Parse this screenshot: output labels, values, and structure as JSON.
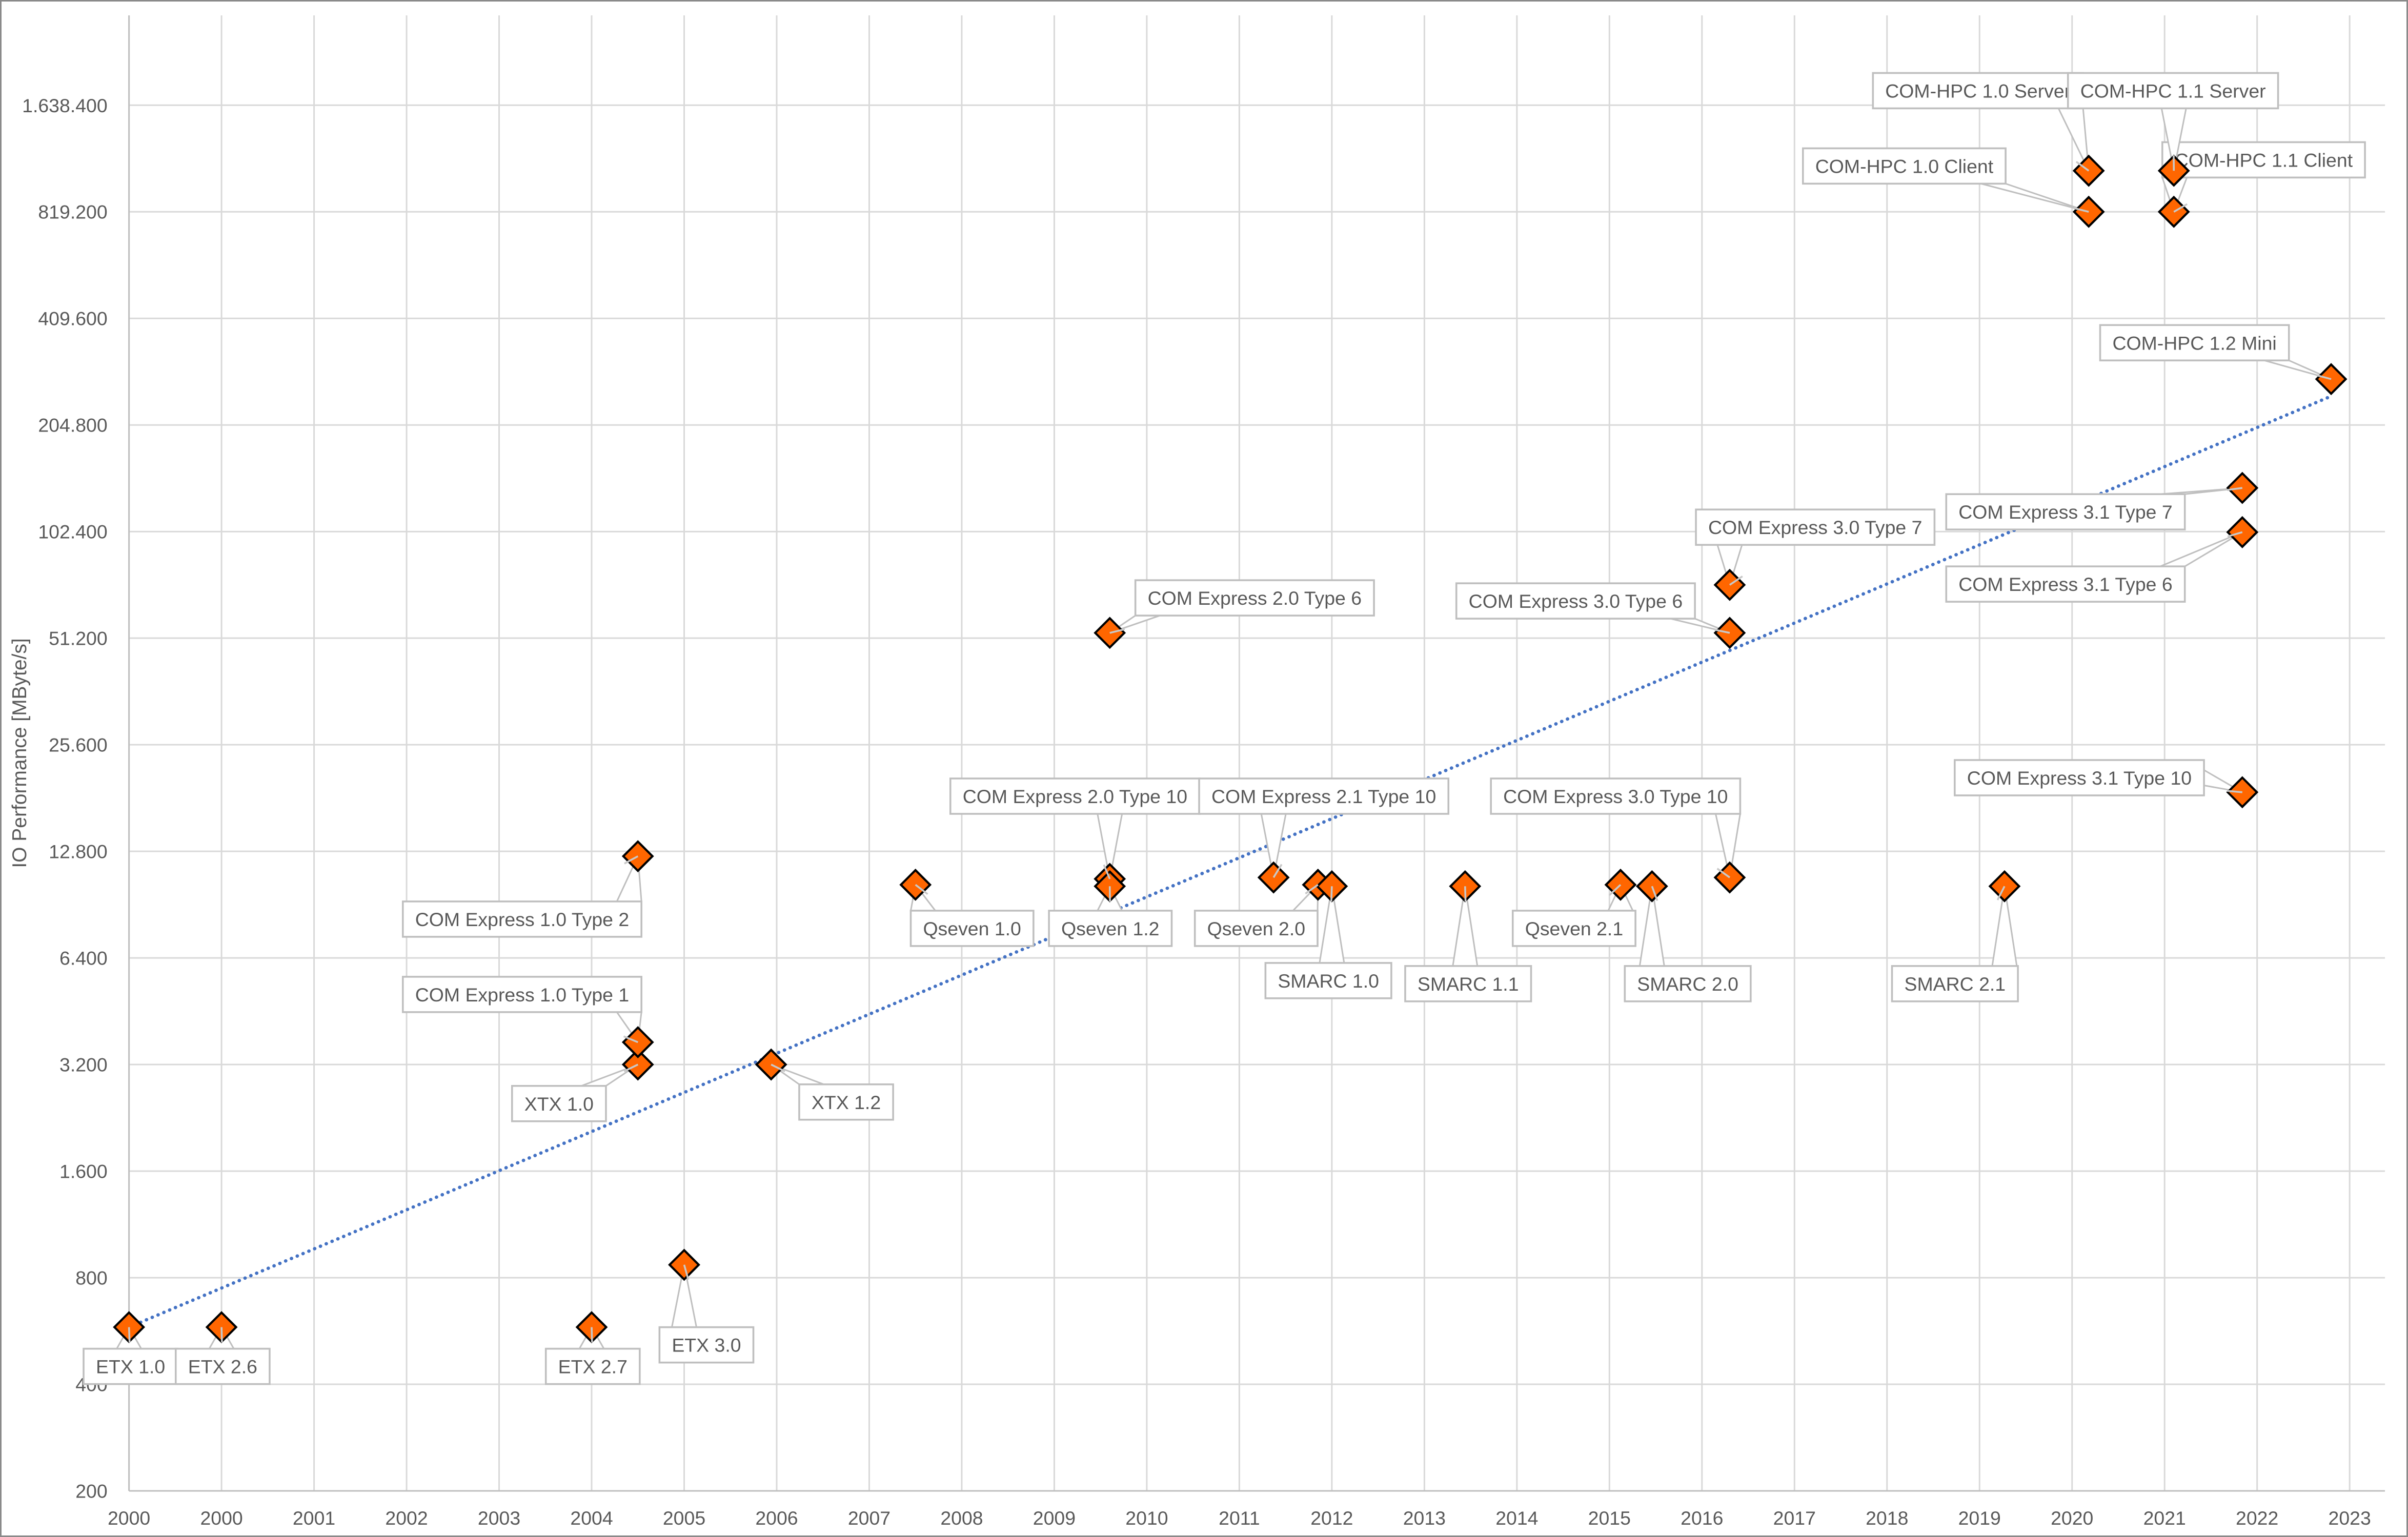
{
  "chart_data": {
    "type": "scatter",
    "title": "",
    "xlabel": "",
    "ylabel": "IO Performance [MByte/s]",
    "y_scale": "log2",
    "ylim": [
      200,
      3000000
    ],
    "xlim": [
      1999,
      2023.4
    ],
    "grid": true,
    "legend": "none",
    "x_tick_labels": [
      "2000",
      "2000",
      "2001",
      "2002",
      "2003",
      "2004",
      "2005",
      "2006",
      "2007",
      "2008",
      "2009",
      "2010",
      "2011",
      "2012",
      "2013",
      "2014",
      "2015",
      "2016",
      "2017",
      "2018",
      "2019",
      "2020",
      "2021",
      "2022",
      "2023"
    ],
    "y_ticks": [
      200,
      400,
      800,
      1600,
      3200,
      6400,
      12800,
      25600,
      51200,
      102400,
      204800,
      409600,
      819200,
      1638400
    ],
    "y_tick_labels": [
      "200",
      "400",
      "800",
      "1.600",
      "3.200",
      "6.400",
      "12.800",
      "25.600",
      "51.200",
      "102.400",
      "204.800",
      "409.600",
      "819.200",
      "1.638.400"
    ],
    "marker_color": "#FF6600",
    "marker_edge_color": "#000000",
    "trendline": {
      "type": "exponential",
      "color": "#4472C4",
      "style": "dotted",
      "from": [
        1999.0,
        580
      ],
      "to": [
        2022.8,
        247000
      ]
    },
    "points": [
      {
        "label": "ETX 1.0",
        "x": 1999.0,
        "y": 580
      },
      {
        "label": "ETX 2.6",
        "x": 2000.0,
        "y": 580
      },
      {
        "label": "ETX 2.7",
        "x": 2004.0,
        "y": 580
      },
      {
        "label": "ETX 3.0",
        "x": 2005.0,
        "y": 870
      },
      {
        "label": "XTX 1.0",
        "x": 2004.5,
        "y": 3200
      },
      {
        "label": "COM Express 1.0 Type 1",
        "x": 2004.5,
        "y": 3700
      },
      {
        "label": "COM Express 1.0 Type 2",
        "x": 2004.5,
        "y": 12400
      },
      {
        "label": "XTX 1.2",
        "x": 2005.94,
        "y": 3200
      },
      {
        "label": "Qseven 1.0",
        "x": 2007.5,
        "y": 10300
      },
      {
        "label": "COM Express 2.0 Type 6",
        "x": 2009.6,
        "y": 53000
      },
      {
        "label": "COM Express 2.0 Type 10",
        "x": 2009.6,
        "y": 10700
      },
      {
        "label": "Qseven 1.2",
        "x": 2009.6,
        "y": 10200
      },
      {
        "label": "COM Express 2.1 Type 10",
        "x": 2011.37,
        "y": 10800
      },
      {
        "label": "Qseven 2.0",
        "x": 2011.85,
        "y": 10300
      },
      {
        "label": "SMARC 1.0",
        "x": 2012.0,
        "y": 10200
      },
      {
        "label": "SMARC 1.1",
        "x": 2013.44,
        "y": 10200
      },
      {
        "label": "Qseven 2.1",
        "x": 2015.12,
        "y": 10300
      },
      {
        "label": "SMARC 2.0",
        "x": 2015.46,
        "y": 10200
      },
      {
        "label": "COM Express 3.0 Type 10",
        "x": 2016.3,
        "y": 10800
      },
      {
        "label": "COM Express 3.0 Type 6",
        "x": 2016.3,
        "y": 53000
      },
      {
        "label": "COM Express 3.0 Type 7",
        "x": 2016.3,
        "y": 72400
      },
      {
        "label": "SMARC 2.1",
        "x": 2019.27,
        "y": 10200
      },
      {
        "label": "COM Express 3.1 Type 10",
        "x": 2021.84,
        "y": 18800
      },
      {
        "label": "COM Express 3.1 Type 6",
        "x": 2021.84,
        "y": 102000
      },
      {
        "label": "COM Express 3.1 Type 7",
        "x": 2021.84,
        "y": 136000
      },
      {
        "label": "COM-HPC 1.0 Client",
        "x": 2020.18,
        "y": 819200
      },
      {
        "label": "COM-HPC 1.0 Server",
        "x": 2020.18,
        "y": 1070000
      },
      {
        "label": "COM-HPC 1.1 Client",
        "x": 2021.1,
        "y": 819200
      },
      {
        "label": "COM-HPC 1.1 Server",
        "x": 2021.1,
        "y": 1070000
      },
      {
        "label": "COM-HPC 1.2 Mini",
        "x": 2022.8,
        "y": 276000
      }
    ]
  }
}
